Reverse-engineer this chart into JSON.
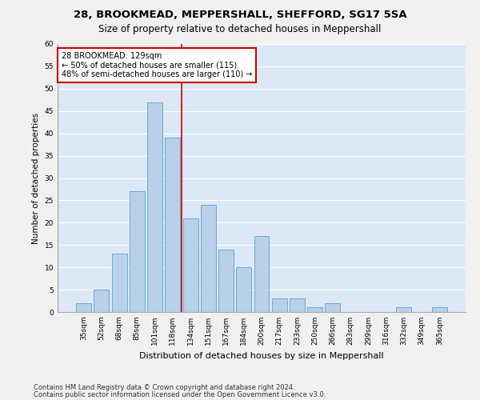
{
  "title1": "28, BROOKMEAD, MEPPERSHALL, SHEFFORD, SG17 5SA",
  "title2": "Size of property relative to detached houses in Meppershall",
  "xlabel": "Distribution of detached houses by size in Meppershall",
  "ylabel": "Number of detached properties",
  "categories": [
    "35sqm",
    "52sqm",
    "68sqm",
    "85sqm",
    "101sqm",
    "118sqm",
    "134sqm",
    "151sqm",
    "167sqm",
    "184sqm",
    "200sqm",
    "217sqm",
    "233sqm",
    "250sqm",
    "266sqm",
    "283sqm",
    "299sqm",
    "316sqm",
    "332sqm",
    "349sqm",
    "365sqm"
  ],
  "values": [
    2,
    5,
    13,
    27,
    47,
    39,
    21,
    24,
    14,
    10,
    17,
    3,
    3,
    1,
    2,
    0,
    0,
    0,
    1,
    0,
    1
  ],
  "bar_color": "#b8d0e8",
  "bar_edge_color": "#6aaad4",
  "vline_x": 5.5,
  "vline_color": "#cc0000",
  "annotation_text": "28 BROOKMEAD: 129sqm\n← 50% of detached houses are smaller (115)\n48% of semi-detached houses are larger (110) →",
  "annotation_box_color": "#ffffff",
  "annotation_box_edge": "#cc0000",
  "ylim": [
    0,
    60
  ],
  "yticks": [
    0,
    5,
    10,
    15,
    20,
    25,
    30,
    35,
    40,
    45,
    50,
    55,
    60
  ],
  "background_color": "#dce8f5",
  "grid_color": "#ffffff",
  "footer1": "Contains HM Land Registry data © Crown copyright and database right 2024.",
  "footer2": "Contains public sector information licensed under the Open Government Licence v3.0.",
  "title1_fontsize": 9.5,
  "title2_fontsize": 8.5,
  "xlabel_fontsize": 8,
  "ylabel_fontsize": 7.5,
  "tick_fontsize": 6.5,
  "annotation_fontsize": 7,
  "footer_fontsize": 6
}
